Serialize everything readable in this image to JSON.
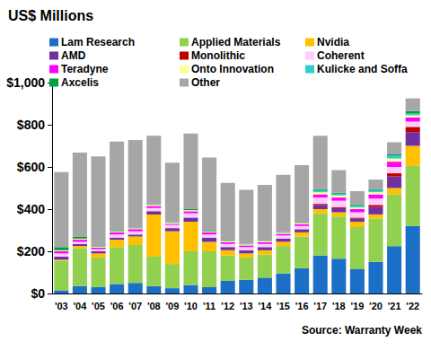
{
  "chart_data": {
    "type": "bar",
    "title": "US$ Millions",
    "annotations": [
      "Source: Warranty Week"
    ],
    "stacked": true,
    "grid": false,
    "legend": "top",
    "categories": [
      "'03",
      "'04",
      "'05",
      "'06",
      "'07",
      "'08",
      "'09",
      "'10",
      "'11",
      "'12",
      "'13",
      "'14",
      "'15",
      "'16",
      "'17",
      "'18",
      "'19",
      "'20",
      "'21",
      "'22"
    ],
    "ylim": [
      0,
      1000
    ],
    "yticks": [
      {
        "value": 0,
        "label": "$0"
      },
      {
        "value": 200,
        "label": "$200"
      },
      {
        "value": 400,
        "label": "$400"
      },
      {
        "value": 600,
        "label": "$600"
      },
      {
        "value": 800,
        "label": "$800"
      },
      {
        "value": 1000,
        "label": "$1,000"
      }
    ],
    "series": [
      {
        "name": "Lam Research",
        "color": "#1c6fc7",
        "values": [
          15,
          35,
          30,
          45,
          50,
          35,
          25,
          40,
          30,
          60,
          65,
          75,
          95,
          120,
          180,
          165,
          115,
          150,
          225,
          320
        ]
      },
      {
        "name": "Applied Materials",
        "color": "#92d050",
        "values": [
          140,
          180,
          140,
          175,
          180,
          140,
          115,
          160,
          170,
          120,
          105,
          110,
          130,
          150,
          200,
          200,
          200,
          205,
          245,
          285
        ]
      },
      {
        "name": "Nvidia",
        "color": "#ffc000",
        "values": [
          5,
          10,
          20,
          35,
          40,
          200,
          155,
          140,
          45,
          25,
          20,
          20,
          20,
          20,
          20,
          20,
          25,
          20,
          30,
          95
        ]
      },
      {
        "name": "AMD",
        "color": "#7030a0",
        "values": [
          15,
          10,
          10,
          10,
          10,
          15,
          15,
          20,
          20,
          15,
          15,
          15,
          15,
          15,
          20,
          20,
          15,
          35,
          55,
          65
        ]
      },
      {
        "name": "Monolithic",
        "color": "#c00000",
        "values": [
          0,
          0,
          0,
          0,
          0,
          0,
          0,
          0,
          0,
          0,
          0,
          0,
          0,
          0,
          5,
          5,
          5,
          10,
          15,
          25
        ]
      },
      {
        "name": "Coherent",
        "color": "#ffccff",
        "values": [
          15,
          10,
          10,
          15,
          15,
          15,
          15,
          20,
          15,
          15,
          15,
          15,
          15,
          15,
          30,
          30,
          25,
          30,
          30,
          25
        ]
      },
      {
        "name": "Teradyne",
        "color": "#ff00ff",
        "values": [
          10,
          10,
          8,
          10,
          10,
          10,
          5,
          10,
          10,
          8,
          8,
          8,
          8,
          8,
          15,
          15,
          15,
          20,
          25,
          20
        ]
      },
      {
        "name": "Onto Innovation",
        "color": "#ffff99",
        "values": [
          5,
          5,
          5,
          5,
          5,
          5,
          5,
          5,
          5,
          5,
          5,
          5,
          5,
          5,
          10,
          10,
          8,
          10,
          15,
          10
        ]
      },
      {
        "name": "Kulicke and Soffa",
        "color": "#33cccc",
        "values": [
          0,
          0,
          0,
          0,
          0,
          0,
          0,
          0,
          0,
          0,
          0,
          0,
          0,
          0,
          10,
          8,
          10,
          10,
          15,
          8
        ]
      },
      {
        "name": "Axcelis",
        "color": "#00a040",
        "values": [
          15,
          8,
          5,
          5,
          3,
          3,
          3,
          5,
          3,
          2,
          2,
          2,
          2,
          2,
          5,
          5,
          4,
          5,
          5,
          12
        ]
      },
      {
        "name": "Other",
        "color": "#a6a6a6",
        "values": [
          355,
          400,
          422,
          420,
          415,
          325,
          282,
          358,
          347,
          275,
          257,
          265,
          273,
          273,
          253,
          107,
          63,
          45,
          57,
          60
        ]
      }
    ]
  }
}
